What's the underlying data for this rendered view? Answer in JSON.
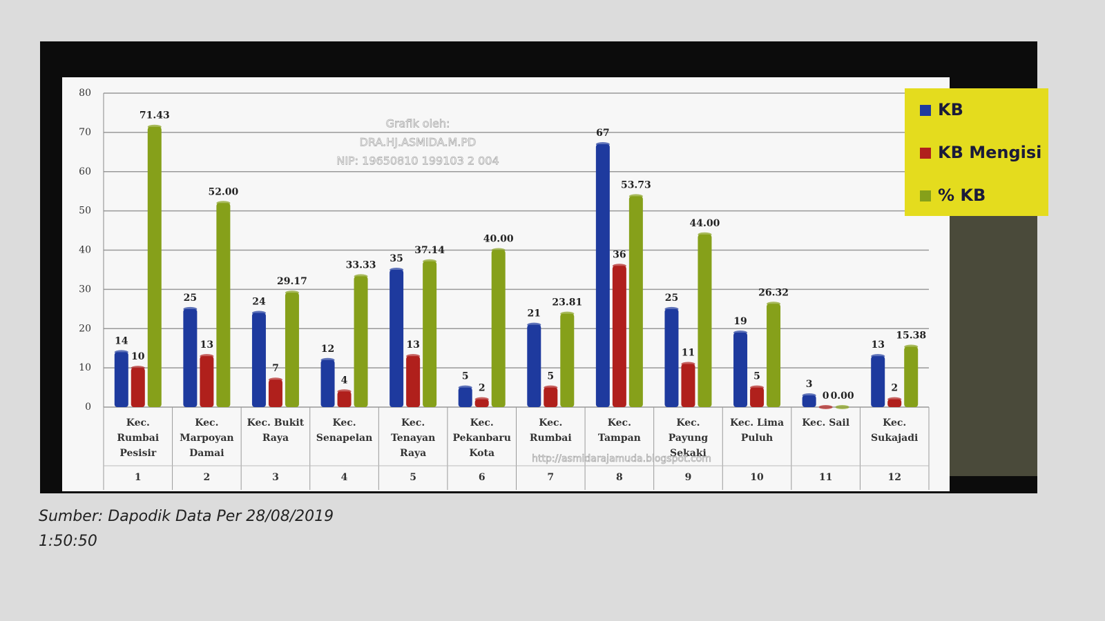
{
  "chart_data": {
    "type": "bar",
    "categories": [
      "Kec. Rumbai Pesisir",
      "Kec. Marpoyan Damai",
      "Kec. Bukit Raya",
      "Kec. Senapelan",
      "Kec. Tenayan Raya",
      "Kec. Pekanbaru Kota",
      "Kec. Rumbai",
      "Kec. Tampan",
      "Kec. Payung Sekaki",
      "Kec. Lima Puluh",
      "Kec. Sail",
      "Kec. Sukajadi"
    ],
    "category_numbers": [
      1,
      2,
      3,
      4,
      5,
      6,
      7,
      8,
      9,
      10,
      11,
      12
    ],
    "series": [
      {
        "name": "KB",
        "color": "#1e3a9e",
        "values": [
          14,
          25,
          24,
          12,
          35,
          5,
          21,
          67,
          25,
          19,
          3,
          13
        ]
      },
      {
        "name": "KB Mengisi",
        "color": "#b0201c",
        "values": [
          10,
          13,
          7,
          4,
          13,
          2,
          5,
          36,
          11,
          5,
          0,
          2
        ]
      },
      {
        "name": "% KB",
        "color": "#86a01a",
        "values": [
          71.43,
          52,
          29.17,
          33.33,
          37.14,
          40,
          23.81,
          53.73,
          44,
          26.32,
          0,
          15.38
        ],
        "value_labels": [
          "71.43",
          "52.00",
          "29.17",
          "33.33",
          "37.14",
          "40.00",
          "23.81",
          "53.73",
          "44.00",
          "26.32",
          "0.00",
          "15.38"
        ]
      }
    ],
    "ylim": [
      0,
      80
    ],
    "yticks": [
      0,
      10,
      20,
      30,
      40,
      50,
      60,
      70,
      80
    ],
    "grid": true,
    "legend": "top-right",
    "legend_background": "#e4dc1e",
    "watermark": [
      "Grafik oleh:",
      "DRA.HJ.ASMIDA.M.PD",
      "NIP: 19650810 199103 2 004"
    ],
    "url": "http://asmidarajamuda.blogspot.com",
    "source": "Sumber: Dapodik Data Per 28/08/2019",
    "time": "1:50:50"
  }
}
